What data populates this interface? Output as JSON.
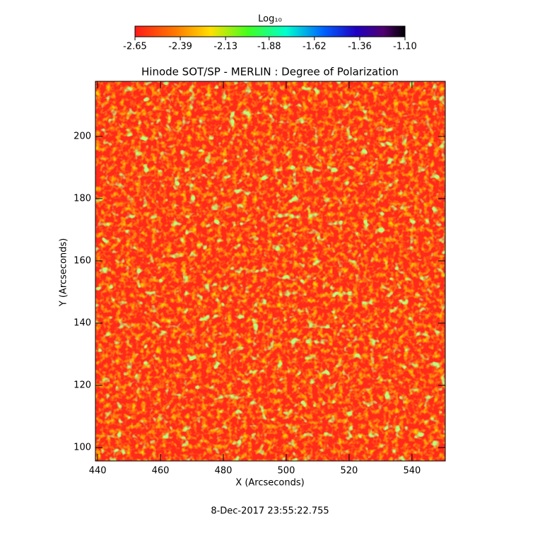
{
  "chart_data": {
    "type": "heatmap",
    "title": "Hinode SOT/SP - MERLIN : Degree of Polarization",
    "xlabel": "X (Arcseconds)",
    "ylabel": "Y (Arcseconds)",
    "xlim": [
      439.3,
      550.6
    ],
    "xticks": [
      440,
      460,
      480,
      500,
      520,
      540
    ],
    "ylim": [
      95.7,
      217.7
    ],
    "yticks": [
      100,
      120,
      140,
      160,
      180,
      200
    ],
    "colorbar_label": "Log₁₀",
    "colorbar_lim": [
      -2.65,
      -1.1
    ],
    "colorbar_ticks": [
      -2.65,
      -2.39,
      -2.13,
      -1.88,
      -1.62,
      -1.36,
      {
        "value": -1.1,
        "label": "-1.10"
      }
    ],
    "footer": "8-Dec-2017 23:55:22.755"
  }
}
